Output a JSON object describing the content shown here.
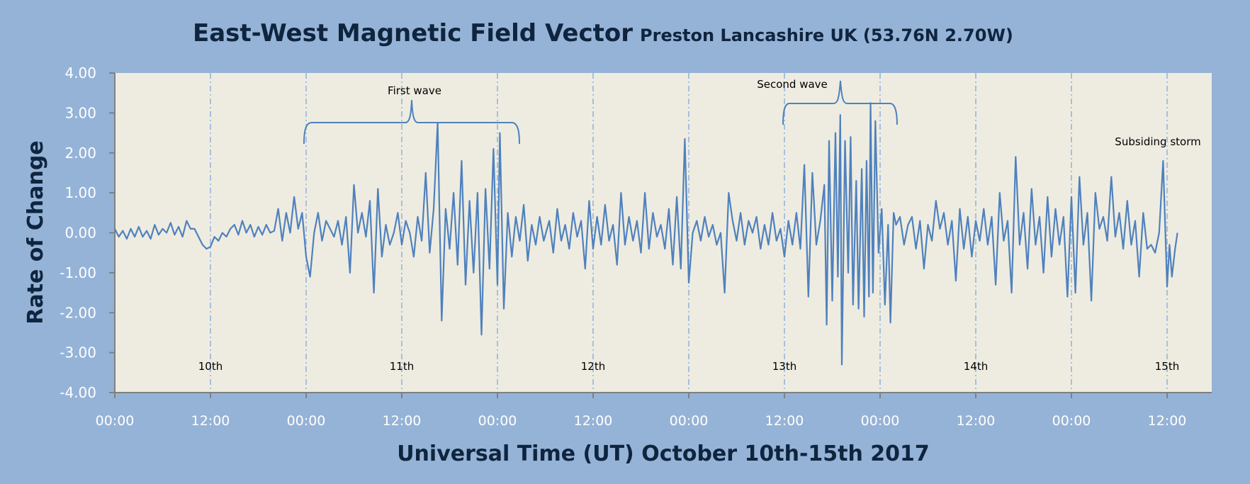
{
  "chart_data": {
    "type": "line",
    "title": "East-West Magnetic Field Vector",
    "subtitle": "Preston Lancashire UK (53.76N 2.70W)",
    "xlabel": "Universal Time (UT) October 10th-15th 2017",
    "ylabel": "Rate of Change",
    "ylim": [
      -4,
      4
    ],
    "xlim_hours": [
      0,
      138
    ],
    "y_ticks": [
      "4.00",
      "3.00",
      "2.00",
      "1.00",
      "0.00",
      "-1.00",
      "-2.00",
      "-3.00",
      "-4.00"
    ],
    "x_ticks": [
      "00:00",
      "12:00",
      "00:00",
      "12:00",
      "00:00",
      "12:00",
      "00:00",
      "12:00",
      "00:00",
      "12:00",
      "00:00",
      "12:00"
    ],
    "day_labels": [
      "10th",
      "11th",
      "12th",
      "13th",
      "14th",
      "15th"
    ],
    "annotations": {
      "first_wave": "First wave",
      "second_wave": "Second wave",
      "subsiding": "Subsiding storm"
    },
    "grid": "vertical dash-dot every 12 hours",
    "colors": {
      "background": "#95b3d7",
      "plot": "#eeece1",
      "line": "#4f81bd",
      "title": "#0f243e"
    },
    "series": [
      {
        "name": "East-West rate of change",
        "x_unit": "hours since Oct 10 00:00 UT",
        "points": [
          [
            0,
            0.1
          ],
          [
            0.5,
            -0.1
          ],
          [
            1,
            0.05
          ],
          [
            1.5,
            -0.15
          ],
          [
            2,
            0.1
          ],
          [
            2.5,
            -0.1
          ],
          [
            3,
            0.15
          ],
          [
            3.5,
            -0.1
          ],
          [
            4,
            0.05
          ],
          [
            4.5,
            -0.15
          ],
          [
            5,
            0.2
          ],
          [
            5.5,
            -0.05
          ],
          [
            6,
            0.1
          ],
          [
            6.5,
            0.0
          ],
          [
            7,
            0.25
          ],
          [
            7.5,
            -0.05
          ],
          [
            8,
            0.15
          ],
          [
            8.5,
            -0.1
          ],
          [
            9,
            0.3
          ],
          [
            9.5,
            0.1
          ],
          [
            10,
            0.1
          ],
          [
            10.5,
            -0.1
          ],
          [
            11,
            -0.3
          ],
          [
            11.5,
            -0.4
          ],
          [
            12,
            -0.35
          ],
          [
            12.5,
            -0.1
          ],
          [
            13,
            -0.2
          ],
          [
            13.5,
            0.0
          ],
          [
            14,
            -0.1
          ],
          [
            14.5,
            0.1
          ],
          [
            15,
            0.2
          ],
          [
            15.5,
            -0.05
          ],
          [
            16,
            0.3
          ],
          [
            16.5,
            0.0
          ],
          [
            17,
            0.2
          ],
          [
            17.5,
            -0.1
          ],
          [
            18,
            0.15
          ],
          [
            18.5,
            -0.05
          ],
          [
            19,
            0.2
          ],
          [
            19.5,
            0.0
          ],
          [
            20,
            0.05
          ],
          [
            20.5,
            0.6
          ],
          [
            21,
            -0.2
          ],
          [
            21.5,
            0.5
          ],
          [
            22,
            0.0
          ],
          [
            22.5,
            0.9
          ],
          [
            23,
            0.1
          ],
          [
            23.5,
            0.5
          ],
          [
            24,
            -0.6
          ],
          [
            24.5,
            -1.1
          ],
          [
            25,
            0.0
          ],
          [
            25.5,
            0.5
          ],
          [
            26,
            -0.2
          ],
          [
            26.5,
            0.3
          ],
          [
            27,
            0.1
          ],
          [
            27.5,
            -0.1
          ],
          [
            28,
            0.3
          ],
          [
            28.5,
            -0.3
          ],
          [
            29,
            0.4
          ],
          [
            29.5,
            -1.0
          ],
          [
            30,
            1.2
          ],
          [
            30.5,
            0.0
          ],
          [
            31,
            0.5
          ],
          [
            31.5,
            -0.1
          ],
          [
            32,
            0.8
          ],
          [
            32.5,
            -1.5
          ],
          [
            33,
            1.1
          ],
          [
            33.5,
            -0.6
          ],
          [
            34,
            0.2
          ],
          [
            34.5,
            -0.3
          ],
          [
            35,
            0.0
          ],
          [
            35.5,
            0.5
          ],
          [
            36,
            -0.3
          ],
          [
            36.5,
            0.3
          ],
          [
            37,
            0.0
          ],
          [
            37.5,
            -0.6
          ],
          [
            38,
            0.4
          ],
          [
            38.5,
            -0.2
          ],
          [
            39,
            1.5
          ],
          [
            39.5,
            -0.5
          ],
          [
            40,
            0.6
          ],
          [
            40.5,
            2.75
          ],
          [
            41,
            -2.2
          ],
          [
            41.5,
            0.6
          ],
          [
            42,
            -0.4
          ],
          [
            42.5,
            1.0
          ],
          [
            43,
            -0.8
          ],
          [
            43.5,
            1.8
          ],
          [
            44,
            -1.3
          ],
          [
            44.5,
            0.8
          ],
          [
            45,
            -1.0
          ],
          [
            45.5,
            1.0
          ],
          [
            46,
            -2.55
          ],
          [
            46.5,
            1.1
          ],
          [
            47,
            -0.9
          ],
          [
            47.5,
            2.1
          ],
          [
            48,
            -1.3
          ],
          [
            48.3,
            2.5
          ],
          [
            48.8,
            -1.9
          ],
          [
            49.3,
            0.5
          ],
          [
            49.8,
            -0.6
          ],
          [
            50.3,
            0.4
          ],
          [
            50.8,
            -0.2
          ],
          [
            51.3,
            0.7
          ],
          [
            51.8,
            -0.7
          ],
          [
            52.3,
            0.2
          ],
          [
            52.8,
            -0.3
          ],
          [
            53.3,
            0.4
          ],
          [
            53.8,
            -0.2
          ],
          [
            54.5,
            0.3
          ],
          [
            55,
            -0.5
          ],
          [
            55.5,
            0.6
          ],
          [
            56,
            -0.2
          ],
          [
            56.5,
            0.2
          ],
          [
            57,
            -0.4
          ],
          [
            57.5,
            0.5
          ],
          [
            58,
            -0.1
          ],
          [
            58.5,
            0.3
          ],
          [
            59,
            -0.9
          ],
          [
            59.5,
            0.8
          ],
          [
            60,
            -0.4
          ],
          [
            60.5,
            0.4
          ],
          [
            61,
            -0.3
          ],
          [
            61.5,
            0.7
          ],
          [
            62,
            -0.2
          ],
          [
            62.5,
            0.2
          ],
          [
            63,
            -0.8
          ],
          [
            63.5,
            1.0
          ],
          [
            64,
            -0.3
          ],
          [
            64.5,
            0.4
          ],
          [
            65,
            -0.2
          ],
          [
            65.5,
            0.3
          ],
          [
            66,
            -0.5
          ],
          [
            66.5,
            1.0
          ],
          [
            67,
            -0.4
          ],
          [
            67.5,
            0.5
          ],
          [
            68,
            -0.1
          ],
          [
            68.5,
            0.2
          ],
          [
            69,
            -0.4
          ],
          [
            69.5,
            0.6
          ],
          [
            70,
            -0.8
          ],
          [
            70.5,
            0.9
          ],
          [
            71,
            -0.9
          ],
          [
            71.5,
            2.35
          ],
          [
            72,
            -1.25
          ],
          [
            72.5,
            0.0
          ],
          [
            73,
            0.3
          ],
          [
            73.5,
            -0.2
          ],
          [
            74,
            0.4
          ],
          [
            74.5,
            -0.1
          ],
          [
            75,
            0.2
          ],
          [
            75.5,
            -0.3
          ],
          [
            76,
            0.0
          ],
          [
            76.5,
            -1.5
          ],
          [
            77,
            1.0
          ],
          [
            77.5,
            0.3
          ],
          [
            78,
            -0.2
          ],
          [
            78.5,
            0.5
          ],
          [
            79,
            -0.3
          ],
          [
            79.5,
            0.3
          ],
          [
            80,
            0.0
          ],
          [
            80.5,
            0.4
          ],
          [
            81,
            -0.4
          ],
          [
            81.5,
            0.2
          ],
          [
            82,
            -0.3
          ],
          [
            82.5,
            0.5
          ],
          [
            83,
            -0.2
          ],
          [
            83.5,
            0.1
          ],
          [
            84,
            -0.6
          ],
          [
            84.5,
            0.3
          ],
          [
            85,
            -0.3
          ],
          [
            85.5,
            0.5
          ],
          [
            86,
            -0.4
          ],
          [
            86.5,
            1.7
          ],
          [
            87,
            -1.6
          ],
          [
            87.5,
            1.5
          ],
          [
            88,
            -0.3
          ],
          [
            88.5,
            0.3
          ],
          [
            89,
            1.2
          ],
          [
            89.3,
            -2.3
          ],
          [
            89.6,
            2.3
          ],
          [
            90,
            -1.7
          ],
          [
            90.4,
            2.5
          ],
          [
            90.7,
            -1.1
          ],
          [
            91,
            2.95
          ],
          [
            91.2,
            -3.3
          ],
          [
            91.6,
            2.3
          ],
          [
            92,
            -1.0
          ],
          [
            92.3,
            2.4
          ],
          [
            92.6,
            -1.8
          ],
          [
            93,
            1.3
          ],
          [
            93.3,
            -1.9
          ],
          [
            93.7,
            1.6
          ],
          [
            94,
            -2.1
          ],
          [
            94.3,
            1.8
          ],
          [
            94.6,
            -1.6
          ],
          [
            94.8,
            3.25
          ],
          [
            95.1,
            -1.5
          ],
          [
            95.4,
            2.8
          ],
          [
            95.8,
            -0.5
          ],
          [
            96.2,
            0.6
          ],
          [
            96.6,
            -1.8
          ],
          [
            97,
            0.2
          ],
          [
            97.3,
            -2.25
          ],
          [
            97.7,
            0.5
          ],
          [
            98,
            0.2
          ],
          [
            98.5,
            0.4
          ],
          [
            99,
            -0.3
          ],
          [
            99.5,
            0.2
          ],
          [
            100,
            0.4
          ],
          [
            100.5,
            -0.4
          ],
          [
            101,
            0.3
          ],
          [
            101.5,
            -0.9
          ],
          [
            102,
            0.2
          ],
          [
            102.5,
            -0.2
          ],
          [
            103,
            0.8
          ],
          [
            103.5,
            0.1
          ],
          [
            104,
            0.5
          ],
          [
            104.5,
            -0.3
          ],
          [
            105,
            0.3
          ],
          [
            105.5,
            -1.2
          ],
          [
            106,
            0.6
          ],
          [
            106.5,
            -0.4
          ],
          [
            107,
            0.4
          ],
          [
            107.5,
            -0.6
          ],
          [
            108,
            0.3
          ],
          [
            108.5,
            -0.2
          ],
          [
            109,
            0.6
          ],
          [
            109.5,
            -0.3
          ],
          [
            110,
            0.4
          ],
          [
            110.5,
            -1.3
          ],
          [
            111,
            1.0
          ],
          [
            111.5,
            -0.2
          ],
          [
            112,
            0.3
          ],
          [
            112.5,
            -1.5
          ],
          [
            113,
            1.9
          ],
          [
            113.5,
            -0.3
          ],
          [
            114,
            0.5
          ],
          [
            114.5,
            -0.9
          ],
          [
            115,
            1.1
          ],
          [
            115.5,
            -0.3
          ],
          [
            116,
            0.4
          ],
          [
            116.5,
            -1.0
          ],
          [
            117,
            0.9
          ],
          [
            117.5,
            -0.6
          ],
          [
            118,
            0.6
          ],
          [
            118.5,
            -0.3
          ],
          [
            119,
            0.4
          ],
          [
            119.5,
            -1.6
          ],
          [
            120,
            0.9
          ],
          [
            120.5,
            -1.5
          ],
          [
            121,
            1.4
          ],
          [
            121.5,
            -0.3
          ],
          [
            122,
            0.5
          ],
          [
            122.5,
            -1.7
          ],
          [
            123,
            1.0
          ],
          [
            123.5,
            0.1
          ],
          [
            124,
            0.4
          ],
          [
            124.5,
            -0.2
          ],
          [
            125,
            1.4
          ],
          [
            125.5,
            -0.1
          ],
          [
            126,
            0.5
          ],
          [
            126.5,
            -0.4
          ],
          [
            127,
            0.8
          ],
          [
            127.5,
            -0.3
          ],
          [
            128,
            0.3
          ],
          [
            128.5,
            -1.1
          ],
          [
            129,
            0.5
          ],
          [
            129.5,
            -0.4
          ],
          [
            130,
            -0.3
          ],
          [
            130.5,
            -0.5
          ],
          [
            131,
            0.0
          ],
          [
            131.5,
            1.8
          ],
          [
            132,
            -1.35
          ],
          [
            132.3,
            -0.3
          ],
          [
            132.6,
            -1.1
          ],
          [
            133,
            -0.4
          ],
          [
            133.3,
            0.0
          ]
        ]
      }
    ]
  }
}
